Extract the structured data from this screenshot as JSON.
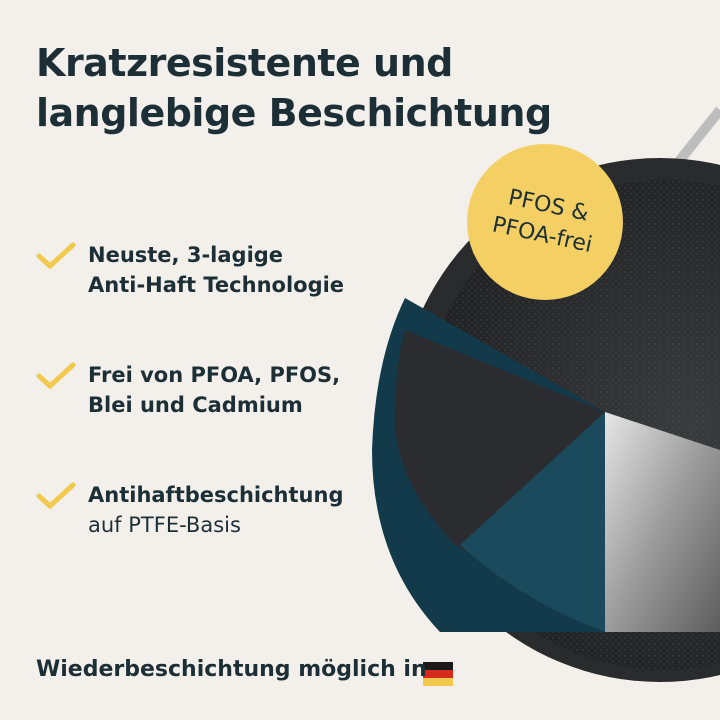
{
  "header": {
    "title": [
      "Kratzresistente und",
      "langlebige Beschichtung"
    ]
  },
  "badge": {
    "lines": [
      "PFOS &",
      "PFOA-frei"
    ]
  },
  "features": [
    {
      "lines": [
        "Neuste, 3-lagige",
        "Anti-Haft Technologie"
      ]
    },
    {
      "lines": [
        "Frei von PFOA, PFOS,",
        "Blei und Cadmium"
      ]
    },
    {
      "lines": [
        "Antihaftbeschichtung",
        "auf PTFE-Basis"
      ]
    }
  ],
  "footer": {
    "text": "Wiederbeschichtung möglich in"
  }
}
